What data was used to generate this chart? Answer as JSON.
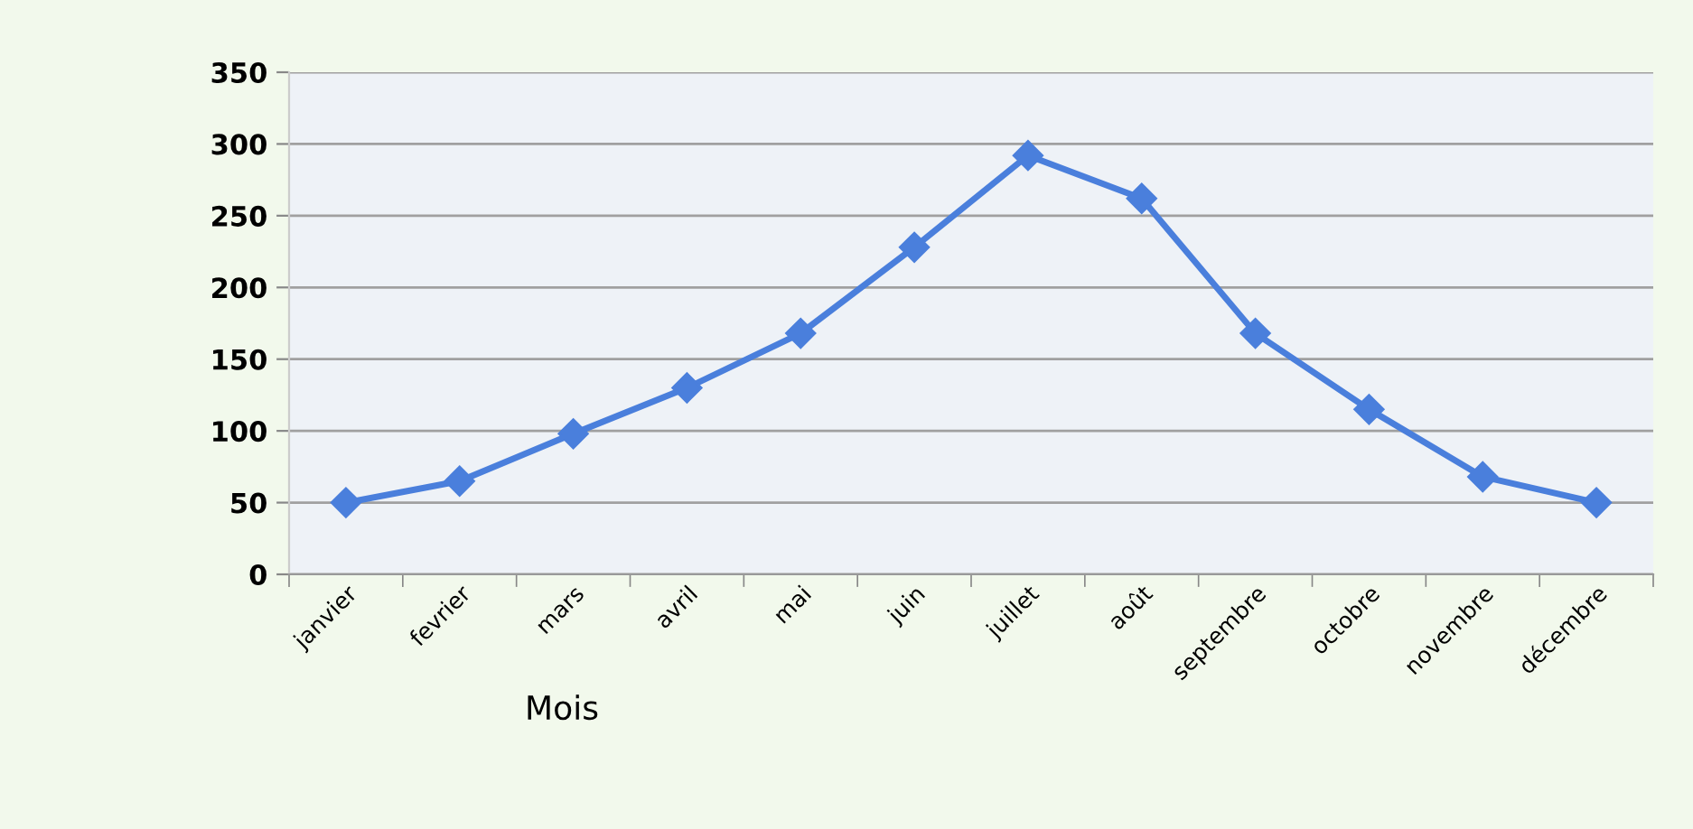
{
  "chart_data": {
    "type": "line",
    "xlabel": "Mois",
    "categories": [
      "janvier",
      "fevrier",
      "mars",
      "avril",
      "mai",
      "juin",
      "juillet",
      "août",
      "septembre",
      "octobre",
      "novembre",
      "décembre"
    ],
    "series": [
      {
        "color": "#4a7fdc",
        "values": [
          50,
          65,
          98,
          130,
          168,
          228,
          292,
          262,
          168,
          115,
          68,
          50
        ]
      }
    ],
    "ylim": [
      0,
      350
    ],
    "yticks": [
      0,
      50,
      100,
      150,
      200,
      250,
      300,
      350
    ],
    "grid": "y",
    "marker": "diamond",
    "line_style": "solid"
  }
}
